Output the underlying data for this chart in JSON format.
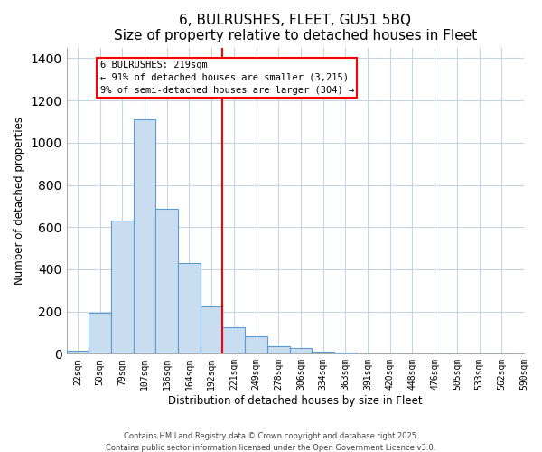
{
  "title": "6, BULRUSHES, FLEET, GU51 5BQ",
  "subtitle": "Size of property relative to detached houses in Fleet",
  "xlabel": "Distribution of detached houses by size in Fleet",
  "ylabel": "Number of detached properties",
  "bar_color": "#c9ddf0",
  "bar_edge_color": "#5b9bd5",
  "grid_color": "#c8d4e0",
  "bins": [
    "22sqm",
    "50sqm",
    "79sqm",
    "107sqm",
    "136sqm",
    "164sqm",
    "192sqm",
    "221sqm",
    "249sqm",
    "278sqm",
    "306sqm",
    "334sqm",
    "363sqm",
    "391sqm",
    "420sqm",
    "448sqm",
    "476sqm",
    "505sqm",
    "533sqm",
    "562sqm",
    "590sqm"
  ],
  "values": [
    15,
    195,
    630,
    1110,
    685,
    430,
    225,
    125,
    83,
    35,
    25,
    12,
    5,
    0,
    0,
    0,
    0,
    0,
    0,
    0
  ],
  "vline_label": "6 BULRUSHES: 219sqm",
  "annotation_line1": "← 91% of detached houses are smaller (3,215)",
  "annotation_line2": "9% of semi-detached houses are larger (304) →",
  "vline_bin_index": 7,
  "ylim": [
    0,
    1450
  ],
  "yticks": [
    0,
    200,
    400,
    600,
    800,
    1000,
    1200,
    1400
  ],
  "footnote1": "Contains HM Land Registry data © Crown copyright and database right 2025.",
  "footnote2": "Contains public sector information licensed under the Open Government Licence v3.0.",
  "background_color": "#ffffff"
}
